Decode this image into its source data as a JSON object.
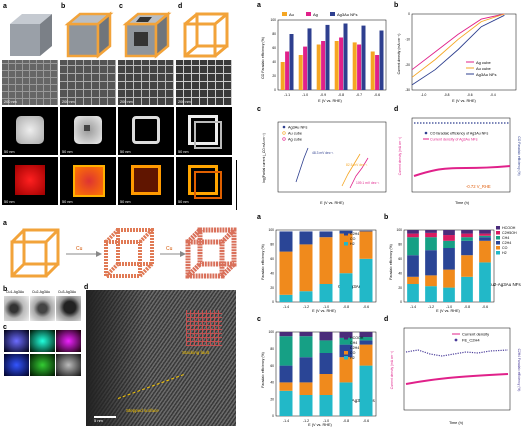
{
  "fig1": {
    "panel_labels": [
      "a",
      "b",
      "c",
      "d"
    ],
    "scale_bars": [
      "200 nm",
      "200 nm",
      "200 nm",
      "200 nm",
      "50 nm",
      "50 nm",
      "50 nm",
      "50 nm",
      "50 nm",
      "50 nm",
      "50 nm",
      "50 nm"
    ]
  },
  "fig2": {
    "panel_labels": [
      "a",
      "b",
      "c",
      "d"
    ],
    "bar_legend": [
      "Au",
      "Ag",
      "Ag3Au NFs"
    ],
    "bar_ylabel": "CO Faradaic efficiency (%)",
    "bar_xlabel": "E (V vs. RHE)",
    "lsv_legend": [
      "Ag cube",
      "Au cube",
      "Ag3Au NFs"
    ],
    "lsv_ylabel": "Current density (mA cm⁻²)",
    "lsv_xlabel": "E (V vs. RHE)",
    "tafel_ylabel": "log(Partial current j_CO mA cm⁻²)",
    "tafel_xlabel": "E (V vs. RHE)",
    "tafel_legend": [
      "Ag3Au NFs",
      "Au cube",
      "Ag cube"
    ],
    "tafel_slopes": [
      "48.3 mV dec⁻¹",
      "82.5 mV dec⁻¹",
      "109.1 mV dec⁻¹"
    ],
    "stab_legend": [
      "CO faradaic efficiency of Ag3Au NFs",
      "Current density of Ag3Au NFs"
    ],
    "stab_ylabel_left": "Current density (mA cm⁻²)",
    "stab_ylabel_right": "CO Faradaic efficiency (%)",
    "stab_xlabel": "Time (h)",
    "stab_potential": "-0.72 V_RHE"
  },
  "fig3": {
    "panel_labels": [
      "a",
      "b",
      "c",
      "d"
    ],
    "labels": [
      "Cu",
      "Cu",
      "Cu1-Ag3Au",
      "Cu2-Ag3Au",
      "Cu3-Ag3Au",
      "Stacking fault",
      "Stepped surface",
      "5 nm"
    ]
  },
  "fig4": {
    "panel_labels": [
      "a",
      "b",
      "c",
      "d"
    ],
    "ylabel": "Faradaic efficiency (%)",
    "xlabel": "E (V vs. RHE)",
    "a_caption": "Cu1-Ag3Au NFs",
    "b_caption": "Cu2-Ag3Au NFs",
    "c_caption": "Cu3-Ag3Au NFs",
    "legend_a": [
      "C2H4",
      "CO",
      "H2"
    ],
    "legend_b": [
      "HCOOH",
      "C2H5OH",
      "CH4",
      "C2H4",
      "CO",
      "H2"
    ],
    "legend_c": [
      "HCOOH",
      "CH4",
      "C2H4",
      "CO",
      "H2"
    ],
    "d_legend": [
      "Current density",
      "FE_C2H4"
    ],
    "d_ylabel_left": "Current density (mA cm⁻²)",
    "d_ylabel_right": "C2H4 Faradaic efficiency (%)",
    "d_xlabel": "Time (h)"
  },
  "colors": {
    "au": "#f5a623",
    "ag": "#e0218a",
    "ag3au": "#2e3f8f",
    "h2": "#22b8c8",
    "co": "#f08a1c",
    "c2h4": "#2a4596",
    "ch4": "#16a085",
    "c2h5oh": "#d81b60",
    "hcooh": "#4a2c7a"
  },
  "chart_data": [
    {
      "type": "bar",
      "title": "",
      "xlabel": "E (V vs. RHE)",
      "ylabel": "CO Faradaic efficiency (%)",
      "categories": [
        "-1.1",
        "-1.0",
        "-0.9",
        "-0.8",
        "-0.7",
        "-0.6"
      ],
      "ylim": [
        0,
        100
      ],
      "series": [
        {
          "name": "Au",
          "values": [
            40,
            50,
            65,
            70,
            68,
            55
          ]
        },
        {
          "name": "Ag",
          "values": [
            55,
            62,
            70,
            75,
            65,
            50
          ]
        },
        {
          "name": "Ag3Au NFs",
          "values": [
            80,
            88,
            93,
            95,
            92,
            85
          ]
        }
      ]
    },
    {
      "type": "line",
      "xlabel": "E (V vs. RHE)",
      "ylabel": "Current density (mA cm⁻²)",
      "xlim": [
        -1.1,
        -0.2
      ],
      "ylim": [
        -30,
        0
      ],
      "series": [
        {
          "name": "Ag cube",
          "x": [
            -1.1,
            -0.9,
            -0.7,
            -0.5,
            -0.3
          ],
          "y": [
            -22,
            -15,
            -8,
            -2,
            0
          ]
        },
        {
          "name": "Au cube",
          "x": [
            -1.1,
            -0.9,
            -0.7,
            -0.5,
            -0.3
          ],
          "y": [
            -25,
            -18,
            -10,
            -3,
            0
          ]
        },
        {
          "name": "Ag3Au NFs",
          "x": [
            -1.1,
            -0.9,
            -0.7,
            -0.5,
            -0.3
          ],
          "y": [
            -28,
            -22,
            -14,
            -5,
            -0.5
          ]
        }
      ]
    },
    {
      "type": "bar",
      "xlabel": "E (V vs. RHE)",
      "ylabel": "Faradaic efficiency (%)",
      "categories": [
        "-1.4",
        "-1.2",
        "-1.0",
        "-0.8",
        "-0.6"
      ],
      "ylim": [
        0,
        100
      ],
      "series": [
        {
          "name": "H2",
          "values": [
            10,
            15,
            25,
            40,
            60
          ]
        },
        {
          "name": "CO",
          "values": [
            60,
            65,
            65,
            55,
            38
          ]
        },
        {
          "name": "C2H4",
          "values": [
            28,
            18,
            8,
            4,
            1
          ]
        }
      ]
    },
    {
      "type": "bar",
      "xlabel": "E (V vs. RHE)",
      "ylabel": "Faradaic efficiency (%)",
      "categories": [
        "-1.4",
        "-1.2",
        "-1.0",
        "-0.8",
        "-0.6"
      ],
      "ylim": [
        0,
        100
      ],
      "series": [
        {
          "name": "H2",
          "values": [
            25,
            22,
            20,
            35,
            55
          ]
        },
        {
          "name": "CO",
          "values": [
            10,
            15,
            25,
            30,
            30
          ]
        },
        {
          "name": "C2H4",
          "values": [
            30,
            35,
            30,
            20,
            5
          ]
        },
        {
          "name": "CH4",
          "values": [
            25,
            18,
            10,
            5,
            2
          ]
        },
        {
          "name": "C2H5OH",
          "values": [
            5,
            6,
            8,
            5,
            3
          ]
        },
        {
          "name": "HCOOH",
          "values": [
            5,
            4,
            7,
            5,
            5
          ]
        }
      ]
    },
    {
      "type": "bar",
      "xlabel": "E (V vs. RHE)",
      "ylabel": "Faradaic efficiency (%)",
      "categories": [
        "-1.4",
        "-1.2",
        "-1.0",
        "-0.8",
        "-0.6"
      ],
      "ylim": [
        0,
        100
      ],
      "series": [
        {
          "name": "H2",
          "values": [
            30,
            25,
            25,
            40,
            60
          ]
        },
        {
          "name": "CO",
          "values": [
            10,
            15,
            25,
            30,
            25
          ]
        },
        {
          "name": "C2H4",
          "values": [
            20,
            30,
            25,
            15,
            5
          ]
        },
        {
          "name": "CH4",
          "values": [
            35,
            25,
            15,
            8,
            4
          ]
        },
        {
          "name": "HCOOH",
          "values": [
            5,
            5,
            10,
            7,
            6
          ]
        }
      ]
    },
    {
      "type": "line",
      "xlabel": "Time (h)",
      "ylabel": "Current density (mA cm⁻²)",
      "xlim": [
        0,
        32
      ],
      "series": [
        {
          "name": "Current density",
          "x": [
            0,
            8,
            16,
            24,
            32
          ],
          "y": [
            -28,
            -27,
            -26,
            -25,
            -24
          ]
        },
        {
          "name": "FE_C2H4",
          "x": [
            0,
            8,
            16,
            24,
            32
          ],
          "y": [
            60,
            55,
            52,
            52,
            54
          ]
        }
      ]
    }
  ]
}
